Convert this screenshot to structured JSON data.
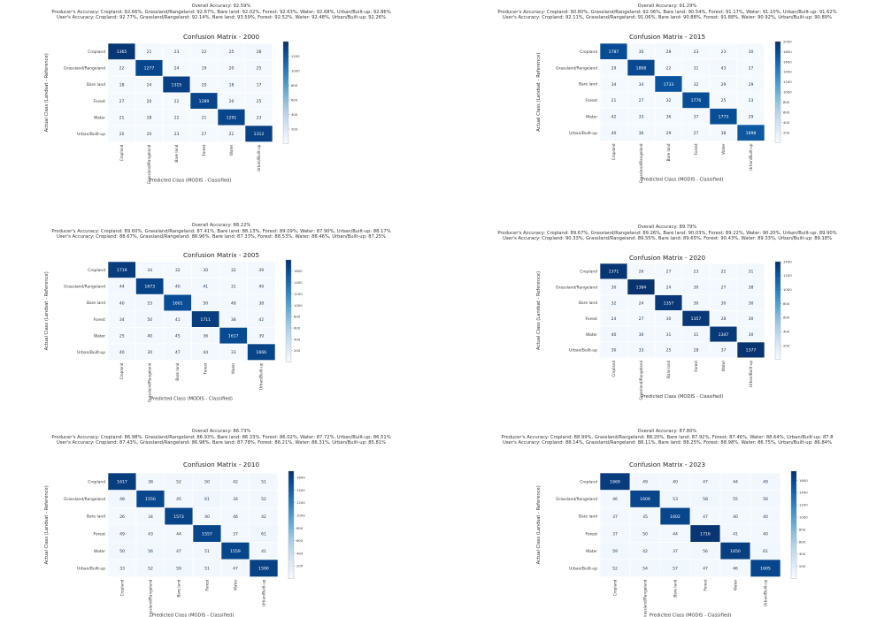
{
  "labels": {
    "classes": [
      "Cropland",
      "Grassland/Rangeland",
      "Bare land",
      "Forest",
      "Water",
      "Urban/Built-up"
    ],
    "xlabel": "Predicted Class (MODIS - Classified)",
    "ylabel": "Actual Class (Landsat - Reference)"
  },
  "colors": {
    "low": "#f7fbff",
    "high": "#08306b",
    "grid": "#c8d4e0"
  },
  "chart_data": [
    {
      "type": "heatmap",
      "title": "Confusion Matrix - 2000",
      "overall": "Overall Accuracy: 92.59%",
      "producers": "Producer's Accuracy: Cropland: 92.66%, Grassland/Rangeland: 92.67%, Bare land: 92.02%, Forest: 92.63%, Water: 92.68%, Urban/Built-up: 92.86%",
      "users": "User's Accuracy: Cropland: 92.77%, Grassland/Rangeland: 92.14%, Bare land: 93.59%, Forest: 92.52%, Water: 92.48%, Urban/Built-up: 92.26%",
      "matrix": [
        [
          1365,
          21,
          23,
          22,
          25,
          28
        ],
        [
          22,
          1277,
          24,
          19,
          20,
          25
        ],
        [
          18,
          24,
          1315,
          20,
          18,
          17
        ],
        [
          27,
          20,
          22,
          1289,
          20,
          25
        ],
        [
          21,
          18,
          22,
          21,
          1291,
          23
        ],
        [
          20,
          20,
          23,
          27,
          22,
          1312
        ]
      ],
      "colorbar": {
        "max": 1400,
        "ticks": [
          200,
          400,
          600,
          800,
          1000,
          1200
        ]
      }
    },
    {
      "type": "heatmap",
      "title": "Confusion Matrix - 2015",
      "overall": "Overall Accuracy: 91.29%",
      "producers": "Producer's Accuracy: Cropland: 90.80%, Grassland/Rangeland: 92.06%, Bare land: 90.54%, Forest: 91.17%, Water: 91.10%, Urban/Built-up: 91.62%",
      "users": "User's Accuracy: Cropland: 92.11%, Grassland/Rangeland: 91.06%, Bare land: 90.88%, Forest: 91.88%, Water: 90.92%, Urban/Built-up: 90.89%",
      "matrix": [
        [
          1787,
          30,
          28,
          23,
          23,
          30
        ],
        [
          29,
          1808,
          22,
          31,
          43,
          27
        ],
        [
          34,
          34,
          1733,
          32,
          29,
          29
        ],
        [
          21,
          27,
          32,
          1776,
          25,
          23
        ],
        [
          42,
          33,
          36,
          37,
          1773,
          29
        ],
        [
          40,
          36,
          29,
          27,
          38,
          1698
        ]
      ],
      "colorbar": {
        "max": 2000,
        "ticks": [
          200,
          400,
          600,
          800,
          1000,
          1200,
          1400,
          1600,
          1800,
          2000
        ]
      }
    },
    {
      "type": "heatmap",
      "title": "Confusion Matrix - 2005",
      "overall": "Overall Accuracy: 88.22%",
      "producers": "Producer's Accuracy: Cropland: 89.60%, Grassland/Rangeland: 87.41%, Bare land: 88.13%, Forest: 89.09%, Water: 87.90%, Urban/Built-up: 88.17%",
      "users": "User's Accuracy: Cropland: 88.67%, Grassland/Rangeland: 86.96%, Bare land: 87.33%, Forest: 88.53%, Water: 88.46%, Urban/Built-up: 87.25%",
      "matrix": [
        [
          1719,
          34,
          32,
          30,
          32,
          39
        ],
        [
          44,
          1673,
          40,
          41,
          31,
          49
        ],
        [
          40,
          53,
          1601,
          50,
          48,
          38
        ],
        [
          34,
          50,
          41,
          1711,
          38,
          42
        ],
        [
          25,
          40,
          45,
          36,
          1617,
          39
        ],
        [
          40,
          30,
          47,
          44,
          33,
          1666
        ]
      ],
      "colorbar": {
        "max": 1800,
        "ticks": [
          200,
          400,
          600,
          800,
          1000,
          1200,
          1400,
          1600
        ]
      }
    },
    {
      "type": "heatmap",
      "title": "Confusion Matrix - 2020",
      "overall": "Overall Accuracy: 89.79%",
      "producers": "Producer's Accuracy: Cropland: 89.67%, Grassland/Rangeland: 89.26%, Bare land: 90.03%, Forest: 89.22%, Water: 90.20%, Urban/Built-up: 89.90%",
      "users": "User's Accuracy: Cropland: 90.33%, Grassland/Rangeland: 89.55%, Bare land: 89.65%, Forest: 90.43%, Water: 89.33%, Urban/Built-up: 89.18%",
      "matrix": [
        [
          1371,
          26,
          27,
          23,
          22,
          31
        ],
        [
          30,
          1384,
          24,
          30,
          27,
          38
        ],
        [
          32,
          24,
          1357,
          30,
          30,
          30
        ],
        [
          24,
          27,
          30,
          1357,
          28,
          30
        ],
        [
          40,
          30,
          31,
          31,
          1347,
          30
        ],
        [
          30,
          33,
          25,
          28,
          37,
          1377
        ]
      ],
      "colorbar": {
        "max": 1400,
        "ticks": [
          200,
          400,
          600,
          800,
          1000,
          1200,
          1400
        ]
      }
    },
    {
      "type": "heatmap",
      "title": "Confusion Matrix - 2010",
      "overall": "Overall Accuracy: 86.73%",
      "producers": "Producer's Accuracy: Cropland: 86.98%, Grassland/Rangeland: 86.93%, Bare land: 86.33%, Forest: 86.02%, Water: 87.72%, Urban/Built-up: 86.51%",
      "users": "User's Accuracy: Cropland: 87.43%, Grassland/Rangeland: 86.98%, Bare land: 87.78%, Forest: 86.21%, Water: 86.31%, Urban/Built-up: 85.81%",
      "matrix": [
        [
          1617,
          38,
          52,
          50,
          42,
          51
        ],
        [
          48,
          1550,
          45,
          61,
          34,
          52
        ],
        [
          26,
          34,
          1573,
          40,
          46,
          42
        ],
        [
          49,
          43,
          44,
          1557,
          37,
          61
        ],
        [
          50,
          56,
          47,
          51,
          1559,
          41
        ],
        [
          33,
          52,
          59,
          51,
          47,
          1590
        ]
      ],
      "colorbar": {
        "max": 1700,
        "ticks": [
          200,
          400,
          600,
          800,
          1000,
          1200,
          1400,
          1600
        ]
      }
    },
    {
      "type": "heatmap",
      "title": "Confusion Matrix - 2023",
      "overall": "Overall Accuracy: 87.80%",
      "producers": "Producer's Accuracy: Cropland: 88.99%, Grassland/Rangeland: 88.20%, Bare land: 87.92%, Forest: 87.46%, Water: 88.64%, Urban/Built-up: 87.8",
      "users": "User's Accuracy: Cropland: 88.14%, Grassland/Rangeland: 88.11%, Bare land: 88.25%, Forest: 88.98%, Water: 86.75%, Urban/Built-up: 86.84%",
      "matrix": [
        [
          1669,
          49,
          40,
          47,
          44,
          49
        ],
        [
          46,
          1609,
          53,
          58,
          55,
          56
        ],
        [
          37,
          35,
          1602,
          47,
          40,
          40
        ],
        [
          37,
          50,
          44,
          1716,
          41,
          40
        ],
        [
          59,
          42,
          37,
          56,
          1650,
          61
        ],
        [
          52,
          54,
          57,
          47,
          46,
          1605
        ]
      ],
      "colorbar": {
        "max": 1750,
        "ticks": [
          200,
          400,
          600,
          800,
          1000,
          1200,
          1400,
          1600
        ]
      }
    }
  ]
}
